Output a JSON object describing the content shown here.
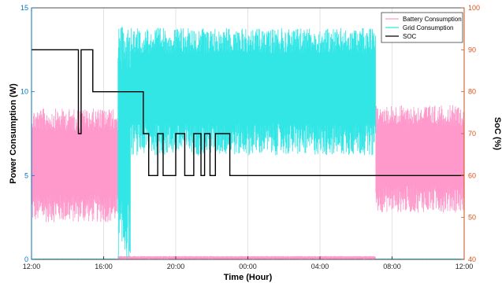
{
  "chart_data": {
    "type": "line",
    "xlabel": "Time (Hour)",
    "ylabel_left": "Power Consumption (W)",
    "ylabel_right": "SoC (%)",
    "x_ticks": [
      "12:00",
      "16:00",
      "20:00",
      "00:00",
      "04:00",
      "08:00",
      "12:00"
    ],
    "x_range_hours": [
      0,
      24
    ],
    "ylim_left": [
      0,
      15
    ],
    "yticks_left": [
      0,
      5,
      10,
      15
    ],
    "ylim_right": [
      40,
      100
    ],
    "yticks_right": [
      40,
      50,
      60,
      70,
      80,
      90,
      100
    ],
    "grid": "vertical",
    "legend_position": "top-right",
    "colors": {
      "battery": "#ff99cc",
      "grid": "#33e6e6",
      "soc": "#000000",
      "left_axis": "#0072bd",
      "right_axis": "#d95319"
    },
    "series": [
      {
        "name": "Battery Consumption",
        "axis": "left",
        "note_shape": "noisy band",
        "segments": [
          {
            "x_start": 0.0,
            "x_end": 4.8,
            "low": 2.2,
            "high": 9.0
          },
          {
            "x_start": 4.8,
            "x_end": 19.1,
            "low": 0.0,
            "high": 0.2
          },
          {
            "x_start": 19.1,
            "x_end": 24.0,
            "low": 2.8,
            "high": 9.2
          }
        ]
      },
      {
        "name": "Grid Consumption",
        "axis": "left",
        "segments": [
          {
            "x_start": 0.0,
            "x_end": 4.8,
            "low": 0.0,
            "high": 0.05
          },
          {
            "x_start": 4.8,
            "x_end": 5.5,
            "low": 0.0,
            "high": 14.0
          },
          {
            "x_start": 5.5,
            "x_end": 19.1,
            "low": 6.2,
            "high": 13.8
          },
          {
            "x_start": 19.1,
            "x_end": 24.0,
            "low": 0.0,
            "high": 0.05
          }
        ]
      },
      {
        "name": "SOC",
        "axis": "right",
        "x": [
          0.0,
          2.6,
          2.6,
          2.75,
          2.75,
          3.4,
          3.4,
          6.2,
          6.2,
          6.5,
          6.5,
          7.0,
          7.0,
          7.3,
          7.3,
          8.0,
          8.0,
          8.5,
          8.5,
          9.0,
          9.0,
          9.4,
          9.4,
          9.6,
          9.6,
          9.9,
          9.9,
          10.2,
          10.2,
          11.0,
          11.0,
          24.0
        ],
        "y": [
          90,
          90,
          70,
          70,
          90,
          90,
          80,
          80,
          70,
          70,
          60,
          60,
          70,
          70,
          60,
          60,
          70,
          70,
          60,
          60,
          70,
          70,
          60,
          60,
          70,
          70,
          60,
          60,
          70,
          70,
          60,
          60
        ]
      }
    ]
  }
}
